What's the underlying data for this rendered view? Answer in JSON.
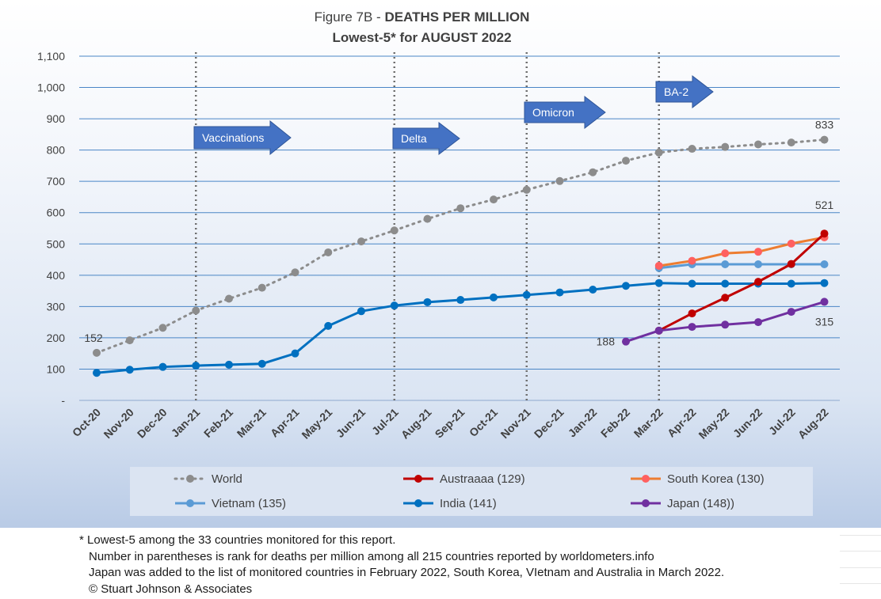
{
  "title": {
    "prefix": "Figure 7B - ",
    "main": "DEATHS PER MILLION",
    "subtitle": "Lowest-5* for AUGUST 2022"
  },
  "chart_data": {
    "type": "line",
    "categories": [
      "Oct-20",
      "Nov-20",
      "Dec-20",
      "Jan-21",
      "Feb-21",
      "Mar-21",
      "Apr-21",
      "May-21",
      "Jun-21",
      "Jul-21",
      "Aug-21",
      "Sep-21",
      "Oct-21",
      "Nov-21",
      "Dec-21",
      "Jan-22",
      "Feb-22",
      "Mar-22",
      "Apr-22",
      "May-22",
      "Jun-22",
      "Jul-22",
      "Aug-22"
    ],
    "yticks": [
      "-",
      "100",
      "200",
      "300",
      "400",
      "500",
      "600",
      "700",
      "800",
      "900",
      "1,000",
      "1,100"
    ],
    "ylim": [
      0,
      1100
    ],
    "grid": true,
    "legend_position": "bottom",
    "series": [
      {
        "name": "World",
        "color": "#8c8c8c",
        "style": "dotted",
        "values": [
          152,
          192,
          232,
          287,
          325,
          360,
          409,
          473,
          508,
          543,
          580,
          614,
          642,
          673,
          701,
          729,
          766,
          792,
          804,
          810,
          818,
          824,
          833
        ]
      },
      {
        "name": "India (141)",
        "color": "#0070c0",
        "style": "solid",
        "values": [
          88,
          98,
          107,
          111,
          114,
          117,
          150,
          238,
          285,
          303,
          314,
          321,
          329,
          337,
          345,
          354,
          366,
          375,
          373,
          373,
          373,
          373,
          375
        ]
      },
      {
        "name": "Vietnam (135)",
        "color": "#5b9bd5",
        "style": "solid",
        "values": [
          null,
          null,
          null,
          null,
          null,
          null,
          null,
          null,
          null,
          null,
          null,
          null,
          null,
          null,
          null,
          null,
          null,
          423,
          435,
          435,
          435,
          435,
          435
        ]
      },
      {
        "name": "South Korea (130)",
        "color": "#ed7d31",
        "style": "solid",
        "marker_color": "#ff6060",
        "values": [
          null,
          null,
          null,
          null,
          null,
          null,
          null,
          null,
          null,
          null,
          null,
          null,
          null,
          null,
          null,
          null,
          null,
          430,
          446,
          470,
          475,
          501,
          521
        ]
      },
      {
        "name": "Austraaaa (129)",
        "color": "#c00000",
        "style": "solid",
        "values": [
          null,
          null,
          null,
          null,
          null,
          null,
          null,
          null,
          null,
          null,
          null,
          null,
          null,
          null,
          null,
          null,
          null,
          223,
          278,
          328,
          379,
          436,
          533
        ]
      },
      {
        "name": "Japan (148))",
        "color": "#7030a0",
        "style": "solid",
        "values": [
          null,
          null,
          null,
          null,
          null,
          null,
          null,
          null,
          null,
          null,
          null,
          null,
          null,
          null,
          null,
          null,
          188,
          223,
          235,
          242,
          250,
          283,
          315
        ]
      }
    ],
    "data_labels": [
      {
        "series": "World",
        "index": 0,
        "text": "152"
      },
      {
        "series": "World",
        "index": 22,
        "text": "833"
      },
      {
        "series": "South Korea (130)",
        "index": 22,
        "text": "521"
      },
      {
        "series": "Japan (148))",
        "index": 16,
        "text": "188"
      },
      {
        "series": "Japan (148))",
        "index": 22,
        "text": "315"
      }
    ],
    "annotations": [
      {
        "text": "Vaccinations",
        "index": 3
      },
      {
        "text": "Delta",
        "index": 9
      },
      {
        "text": "Omicron",
        "index": 13
      },
      {
        "text": "BA-2",
        "index": 17
      }
    ],
    "event_lines": [
      3,
      9,
      13,
      17
    ]
  },
  "legend_order": [
    "World",
    "Austraaaa (129)",
    "South Korea (130)",
    "Vietnam (135)",
    "India (141)",
    "Japan (148))"
  ],
  "footnotes": [
    "* Lowest-5 among the 33 countries monitored for this report.",
    "Number in parentheses is rank for deaths per million among all 215 countries reported by worldometers.info",
    "Japan was added to the list of monitored countries in February 2022, South Korea, VIetnam and Australia in March 2022.",
    "© Stuart Johnson & Associates"
  ]
}
